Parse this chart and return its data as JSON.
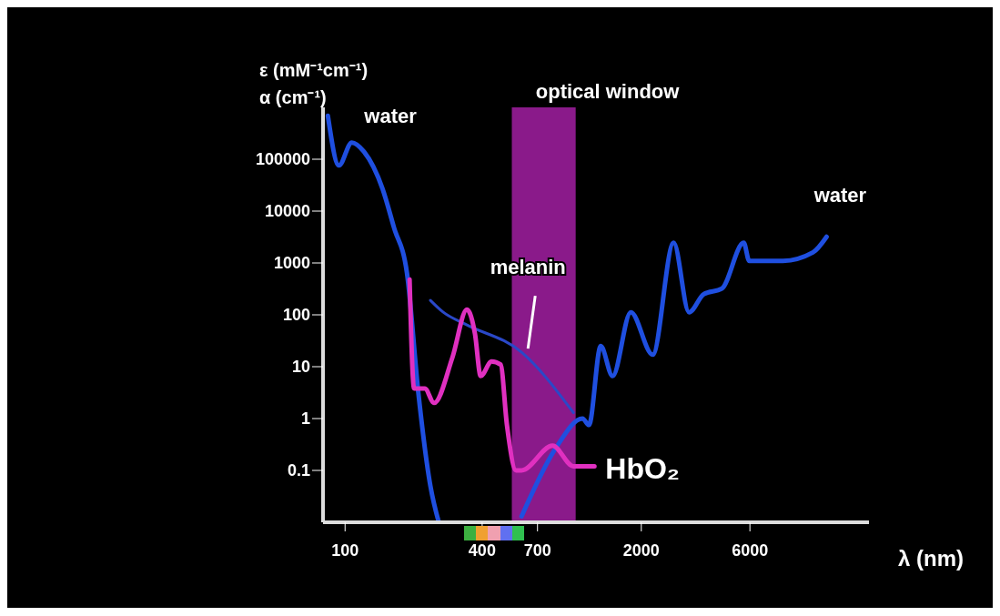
{
  "chart_data": {
    "type": "line",
    "ylabel": "ε (mM⁻¹cm⁻¹)\nα (cm⁻¹)",
    "xlabel": "λ (nm)",
    "log": "xy",
    "xlim": [
      80,
      20000
    ],
    "xticks": [
      100,
      400,
      700,
      2000,
      6000
    ],
    "ylim": [
      0.01,
      1000000
    ],
    "yticks": [
      0.1,
      1,
      10,
      100,
      1000,
      10000,
      100000
    ],
    "bands": [
      {
        "axis": "x",
        "from": 540,
        "to": 1030,
        "label": "optical window",
        "color": "#8a1a8a"
      }
    ],
    "series": [
      {
        "name": "water",
        "color": "#1f4fe0",
        "x": [
          84,
          94,
          107,
          121,
          146,
          164,
          187,
          210,
          237,
          258
        ],
        "values": [
          690000,
          76000,
          210000,
          140000,
          27000,
          4800,
          640,
          3,
          0.05,
          0.01
        ]
      },
      {
        "name": "water",
        "color": "#1f4fe0",
        "x": [
          596,
          838,
          1104,
          1178,
          1327,
          1496,
          1799,
          2244,
          2773,
          3243,
          3758,
          4519,
          5636,
          5957,
          8375,
          11350,
          13030
        ],
        "values": [
          0.013,
          0.26,
          1,
          0.75,
          25,
          6.6,
          112,
          17,
          2450,
          112,
          250,
          320,
          2450,
          1100,
          1100,
          1600,
          3200
        ]
      },
      {
        "name": "melanin",
        "color": "#2a48c8",
        "x": [
          237,
          270,
          343,
          596,
          1007
        ],
        "values": [
          190,
          112,
          64,
          19,
          1.3
        ]
      },
      {
        "name": "HbO₂",
        "color": "#e030c0",
        "x": [
          192,
          201,
          224,
          246,
          296,
          343,
          372,
          394,
          440,
          482,
          514,
          564,
          596,
          815,
          1007,
          1245
        ],
        "values": [
          480,
          3.8,
          3.8,
          2,
          15,
          126,
          43,
          6.6,
          12.6,
          11,
          0.75,
          0.1,
          0.1,
          0.3,
          0.12,
          0.12
        ]
      }
    ]
  }
}
